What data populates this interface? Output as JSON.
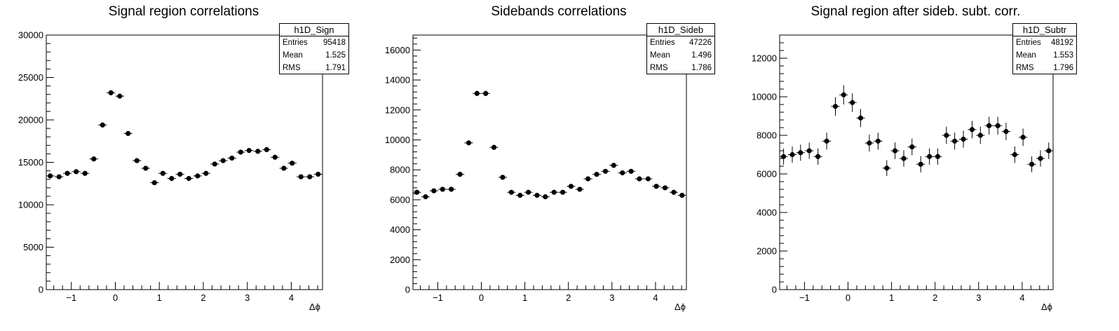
{
  "chart_data": [
    {
      "type": "scatter",
      "title": "Signal region correlations",
      "xlabel": "Δϕ",
      "ylabel": "",
      "xlim": [
        -1.57,
        4.71
      ],
      "ylim": [
        0,
        30000
      ],
      "xticks": [
        -1,
        0,
        1,
        2,
        3,
        4
      ],
      "yticks": [
        0,
        5000,
        10000,
        15000,
        20000,
        25000,
        30000
      ],
      "x": [
        -1.48,
        -1.28,
        -1.09,
        -0.89,
        -0.69,
        -0.49,
        -0.29,
        -0.1,
        0.1,
        0.29,
        0.49,
        0.69,
        0.89,
        1.08,
        1.28,
        1.47,
        1.67,
        1.87,
        2.06,
        2.26,
        2.45,
        2.65,
        2.85,
        3.04,
        3.24,
        3.44,
        3.63,
        3.83,
        4.02,
        4.22,
        4.42,
        4.61
      ],
      "values": [
        13400,
        13300,
        13700,
        13900,
        13700,
        15400,
        19400,
        23200,
        22800,
        18400,
        15200,
        14300,
        12600,
        13700,
        13100,
        13600,
        13100,
        13400,
        13700,
        14800,
        15200,
        15500,
        16200,
        16400,
        16300,
        16500,
        15600,
        14300,
        14900,
        13300,
        13300,
        13600
      ],
      "errors": [
        200,
        200,
        200,
        200,
        200,
        210,
        240,
        260,
        260,
        230,
        210,
        200,
        190,
        200,
        200,
        200,
        200,
        200,
        200,
        210,
        210,
        210,
        220,
        220,
        220,
        220,
        210,
        200,
        210,
        200,
        200,
        200
      ],
      "stats": {
        "name": "h1D_Sign",
        "entries_label": "Entries",
        "entries": "95418",
        "mean_label": "Mean",
        "mean": "1.525",
        "rms_label": "RMS",
        "rms": "1.791"
      }
    },
    {
      "type": "scatter",
      "title": "Sidebands correlations",
      "xlabel": "Δϕ",
      "ylabel": "",
      "xlim": [
        -1.57,
        4.71
      ],
      "ylim": [
        0,
        17000
      ],
      "xticks": [
        -1,
        0,
        1,
        2,
        3,
        4
      ],
      "yticks": [
        0,
        2000,
        4000,
        6000,
        8000,
        10000,
        12000,
        14000,
        16000
      ],
      "x": [
        -1.48,
        -1.28,
        -1.09,
        -0.89,
        -0.69,
        -0.49,
        -0.29,
        -0.1,
        0.1,
        0.29,
        0.49,
        0.69,
        0.89,
        1.08,
        1.28,
        1.47,
        1.67,
        1.87,
        2.06,
        2.26,
        2.45,
        2.65,
        2.85,
        3.04,
        3.24,
        3.44,
        3.63,
        3.83,
        4.02,
        4.22,
        4.42,
        4.61
      ],
      "values": [
        6500,
        6200,
        6600,
        6700,
        6700,
        7700,
        9800,
        13100,
        13100,
        9500,
        7500,
        6500,
        6300,
        6500,
        6300,
        6200,
        6500,
        6500,
        6900,
        6700,
        7400,
        7700,
        7900,
        8300,
        7800,
        7900,
        7400,
        7400,
        6900,
        6800,
        6500,
        6300
      ],
      "errors": [
        120,
        120,
        120,
        120,
        120,
        130,
        150,
        170,
        170,
        150,
        130,
        120,
        120,
        120,
        120,
        120,
        120,
        120,
        130,
        120,
        130,
        130,
        130,
        140,
        130,
        130,
        130,
        130,
        130,
        120,
        120,
        120
      ],
      "stats": {
        "name": "h1D_Sideb",
        "entries_label": "Entries",
        "entries": "47226",
        "mean_label": "Mean",
        "mean": "1.496",
        "rms_label": "RMS",
        "rms": "1.786"
      }
    },
    {
      "type": "scatter",
      "title": "Signal region after sideb. subt. corr.",
      "xlabel": "Δϕ",
      "ylabel": "",
      "xlim": [
        -1.57,
        4.71
      ],
      "ylim": [
        0,
        13200
      ],
      "xticks": [
        -1,
        0,
        1,
        2,
        3,
        4
      ],
      "yticks": [
        0,
        2000,
        4000,
        6000,
        8000,
        10000,
        12000
      ],
      "x": [
        -1.48,
        -1.28,
        -1.09,
        -0.89,
        -0.69,
        -0.49,
        -0.29,
        -0.1,
        0.1,
        0.29,
        0.49,
        0.69,
        0.89,
        1.08,
        1.28,
        1.47,
        1.67,
        1.87,
        2.06,
        2.26,
        2.45,
        2.65,
        2.85,
        3.04,
        3.24,
        3.44,
        3.63,
        3.83,
        4.02,
        4.22,
        4.42,
        4.61
      ],
      "values": [
        6900,
        7000,
        7100,
        7200,
        6900,
        7700,
        9500,
        10100,
        9700,
        8900,
        7600,
        7700,
        6300,
        7200,
        6800,
        7400,
        6500,
        6900,
        6900,
        8000,
        7700,
        7800,
        8300,
        8000,
        8500,
        8500,
        8200,
        7000,
        7900,
        6500,
        6800,
        7200
      ],
      "errors": [
        420,
        420,
        420,
        420,
        420,
        440,
        480,
        500,
        490,
        470,
        440,
        440,
        410,
        430,
        420,
        430,
        420,
        420,
        420,
        450,
        440,
        440,
        450,
        450,
        460,
        460,
        450,
        430,
        450,
        410,
        420,
        430
      ],
      "stats": {
        "name": "h1D_Subtr",
        "entries_label": "Entries",
        "entries": "48192",
        "mean_label": "Mean",
        "mean": "1.553",
        "rms_label": "RMS",
        "rms": "1.796"
      }
    }
  ]
}
